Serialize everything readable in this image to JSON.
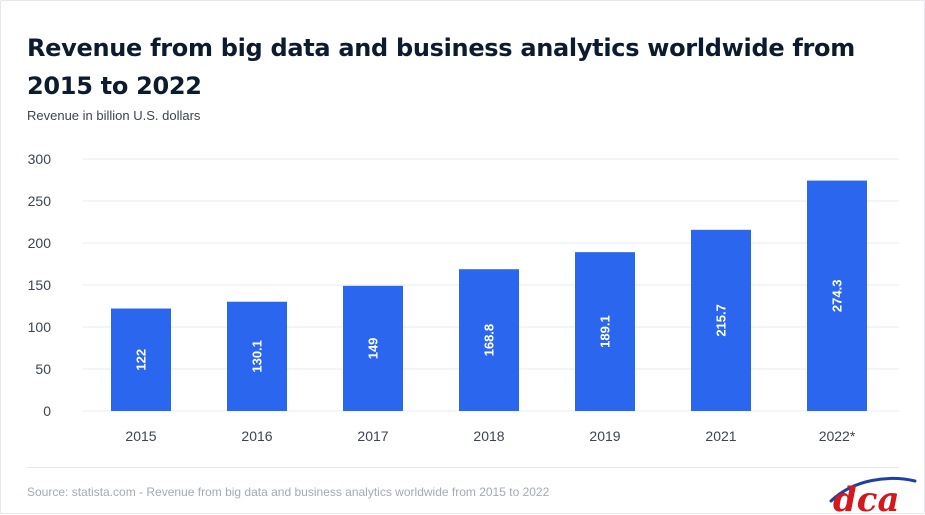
{
  "header": {
    "title": "Revenue from big data and business analytics worldwide from 2015 to 2022",
    "subtitle": "Revenue in billion U.S. dollars"
  },
  "footer": {
    "source": "Source: statista.com - Revenue from big data and business analytics worldwide from 2015 to 2022",
    "logo_text": "dca"
  },
  "colors": {
    "bar": "#2b66ef",
    "grid": "#e9ebef",
    "tick_text": "#3b4452",
    "bar_label": "#ffffff",
    "logo_red": "#d4191e",
    "logo_blue": "#1f3fa8"
  },
  "chart_data": {
    "type": "bar",
    "title": "Revenue from big data and business analytics worldwide from 2015 to 2022",
    "subtitle": "Revenue in billion U.S. dollars",
    "xlabel": "",
    "ylabel": "",
    "categories": [
      "2015",
      "2016",
      "2017",
      "2018",
      "2019",
      "2021",
      "2022*"
    ],
    "values": [
      122,
      130.1,
      149,
      168.8,
      189.1,
      215.7,
      274.3
    ],
    "value_labels": [
      "122",
      "130.1",
      "149",
      "168.8",
      "189.1",
      "215.7",
      "274.3"
    ],
    "ylim": [
      0,
      300
    ],
    "yticks": [
      0,
      50,
      100,
      150,
      200,
      250,
      300
    ],
    "grid": true,
    "legend": "none"
  }
}
